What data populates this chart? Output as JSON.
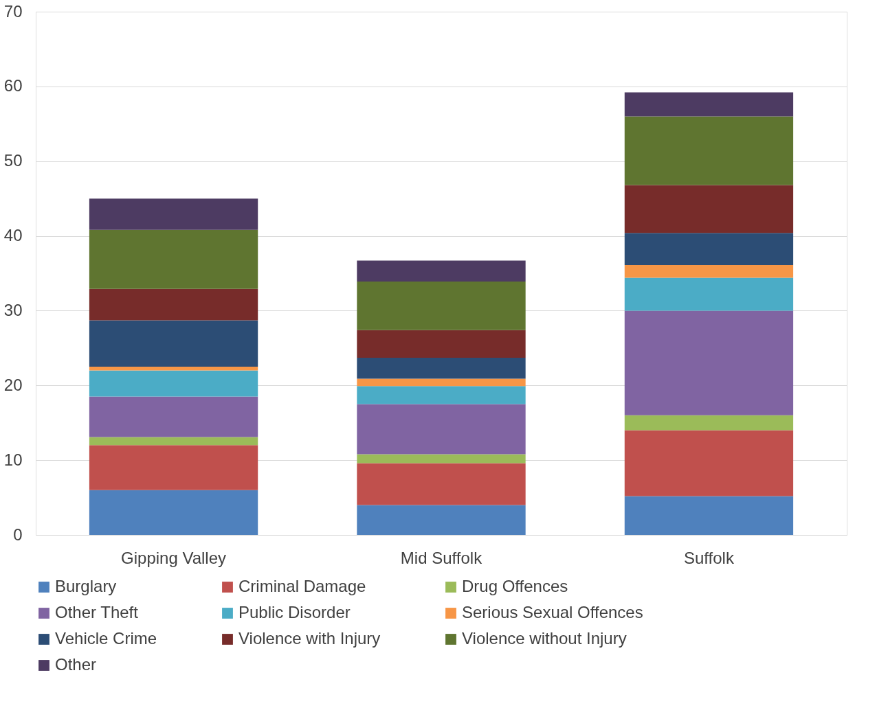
{
  "chart_data": {
    "type": "bar",
    "stacked": true,
    "categories": [
      "Gipping Valley",
      "Mid Suffolk",
      "Suffolk"
    ],
    "series": [
      {
        "name": "Burglary",
        "color": "#4f81bd",
        "values": [
          6.0,
          4.0,
          5.2
        ]
      },
      {
        "name": "Criminal Damage",
        "color": "#c0504d",
        "values": [
          6.0,
          5.6,
          8.8
        ]
      },
      {
        "name": "Drug Offences",
        "color": "#9bbb59",
        "values": [
          1.1,
          1.2,
          2.0
        ]
      },
      {
        "name": "Other Theft",
        "color": "#8064a2",
        "values": [
          5.4,
          6.7,
          14.0
        ]
      },
      {
        "name": "Public Disorder",
        "color": "#4bacc6",
        "values": [
          3.5,
          2.4,
          4.4
        ]
      },
      {
        "name": "Serious Sexual Offences",
        "color": "#f79646",
        "values": [
          0.5,
          1.0,
          1.7
        ]
      },
      {
        "name": "Vehicle Crime",
        "color": "#2c4d75",
        "values": [
          6.2,
          2.8,
          4.3
        ]
      },
      {
        "name": "Violence with Injury",
        "color": "#772c2a",
        "values": [
          4.2,
          3.7,
          6.4
        ]
      },
      {
        "name": "Violence without Injury",
        "color": "#5f7530",
        "values": [
          7.9,
          6.5,
          9.2
        ]
      },
      {
        "name": "Other",
        "color": "#4d3b62",
        "values": [
          4.2,
          2.8,
          3.2
        ]
      }
    ],
    "ylim": [
      0,
      70
    ],
    "yticks": [
      0,
      10,
      20,
      30,
      40,
      50,
      60,
      70
    ],
    "grid": "y",
    "legend": "bottom"
  }
}
